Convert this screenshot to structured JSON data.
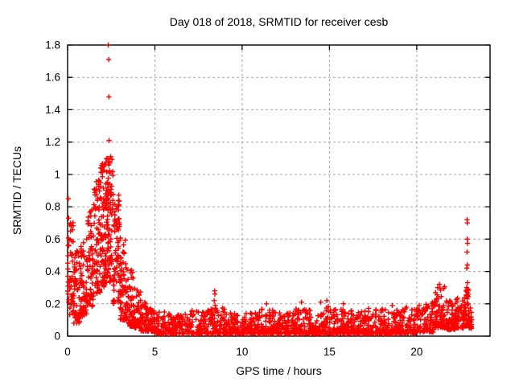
{
  "chart_data": {
    "type": "scatter",
    "title": "Day 018 of 2018, SRMTID for receiver cesb",
    "xlabel": "GPS time / hours",
    "ylabel": "SRMTID / TECUs",
    "xlim": [
      0,
      24.2
    ],
    "ylim": [
      0,
      1.8
    ],
    "xticks": [
      "0",
      "5",
      "10",
      "15",
      "20"
    ],
    "yticks": [
      "0",
      "0.2",
      "0.4",
      "0.6",
      "0.8",
      "1",
      "1.2",
      "1.4",
      "1.6",
      "1.8"
    ],
    "grid": true,
    "legend": "none",
    "marker": "plus",
    "marker_color": "#ff0000",
    "axis_color": "#000000",
    "grid_color": "#a6a6a6",
    "seed": 2018,
    "density_bins_format": [
      "x_start_hours",
      "x_end_hours",
      "count",
      "y_min_TECUs",
      "y_max_TECUs",
      "skew_exponent"
    ],
    "density_bins": [
      [
        0.0,
        0.35,
        48,
        0.13,
        0.72,
        1.6
      ],
      [
        0.35,
        0.7,
        52,
        0.08,
        0.55,
        1.6
      ],
      [
        0.7,
        1.1,
        60,
        0.12,
        0.68,
        1.5
      ],
      [
        1.1,
        1.5,
        65,
        0.18,
        0.78,
        1.4
      ],
      [
        1.5,
        1.9,
        75,
        0.25,
        0.98,
        1.3
      ],
      [
        1.9,
        2.2,
        70,
        0.3,
        1.08,
        1.25
      ],
      [
        2.2,
        2.6,
        95,
        0.33,
        1.13,
        1.25
      ],
      [
        2.6,
        3.0,
        75,
        0.2,
        0.88,
        1.4
      ],
      [
        3.0,
        3.4,
        65,
        0.1,
        0.62,
        1.7
      ],
      [
        3.4,
        3.8,
        58,
        0.06,
        0.42,
        1.8
      ],
      [
        3.8,
        4.2,
        52,
        0.05,
        0.3,
        1.8
      ],
      [
        4.2,
        4.6,
        50,
        0.03,
        0.22,
        1.9
      ],
      [
        4.6,
        5.0,
        50,
        0.03,
        0.17,
        2.0
      ],
      [
        5.0,
        6.0,
        88,
        0.015,
        0.15,
        2.2
      ],
      [
        6.0,
        7.0,
        88,
        0.015,
        0.14,
        2.2
      ],
      [
        7.0,
        8.0,
        88,
        0.015,
        0.17,
        2.2
      ],
      [
        8.0,
        9.0,
        88,
        0.015,
        0.18,
        2.2
      ],
      [
        9.0,
        10.0,
        88,
        0.015,
        0.15,
        2.2
      ],
      [
        10.0,
        11.0,
        88,
        0.015,
        0.16,
        2.2
      ],
      [
        11.0,
        12.0,
        88,
        0.015,
        0.17,
        2.2
      ],
      [
        12.0,
        13.0,
        88,
        0.015,
        0.15,
        2.2
      ],
      [
        13.0,
        14.0,
        88,
        0.015,
        0.17,
        2.2
      ],
      [
        14.0,
        15.0,
        88,
        0.015,
        0.19,
        2.2
      ],
      [
        15.0,
        16.0,
        88,
        0.015,
        0.17,
        2.2
      ],
      [
        16.0,
        17.0,
        88,
        0.015,
        0.16,
        2.2
      ],
      [
        17.0,
        18.0,
        88,
        0.015,
        0.18,
        2.2
      ],
      [
        18.0,
        19.0,
        88,
        0.015,
        0.17,
        2.2
      ],
      [
        19.0,
        20.0,
        88,
        0.02,
        0.18,
        2.1
      ],
      [
        20.0,
        21.0,
        88,
        0.025,
        0.2,
        2.0
      ],
      [
        21.0,
        21.6,
        72,
        0.05,
        0.31,
        1.5
      ],
      [
        21.6,
        22.2,
        60,
        0.04,
        0.22,
        1.8
      ],
      [
        22.2,
        22.7,
        56,
        0.05,
        0.24,
        1.7
      ],
      [
        22.7,
        23.0,
        50,
        0.06,
        0.3,
        1.4
      ],
      [
        23.0,
        23.2,
        16,
        0.04,
        0.18,
        1.8
      ]
    ],
    "notable_points": [
      [
        0.04,
        0.85
      ],
      [
        0.06,
        0.73
      ],
      [
        1.9,
        1.04
      ],
      [
        2.3,
        1.1
      ],
      [
        2.33,
        1.8
      ],
      [
        2.36,
        1.71
      ],
      [
        2.37,
        1.48
      ],
      [
        2.38,
        1.21
      ],
      [
        2.42,
        1.07
      ],
      [
        2.47,
        1.11
      ],
      [
        8.4,
        0.22
      ],
      [
        8.42,
        0.28
      ],
      [
        8.44,
        0.26
      ],
      [
        8.46,
        0.19
      ],
      [
        11.4,
        0.2
      ],
      [
        13.4,
        0.21
      ],
      [
        14.5,
        0.21
      ],
      [
        14.85,
        0.22
      ],
      [
        15.8,
        0.2
      ],
      [
        18.6,
        0.19
      ],
      [
        20.9,
        0.21
      ],
      [
        21.2,
        0.3
      ],
      [
        21.3,
        0.32
      ],
      [
        22.86,
        0.3
      ],
      [
        22.87,
        0.42
      ],
      [
        22.88,
        0.52
      ],
      [
        22.88,
        0.72
      ],
      [
        22.89,
        0.6
      ],
      [
        22.9,
        0.44
      ],
      [
        22.9,
        0.7
      ],
      [
        22.91,
        0.33
      ],
      [
        22.92,
        0.575
      ],
      [
        22.93,
        0.29
      ]
    ]
  }
}
